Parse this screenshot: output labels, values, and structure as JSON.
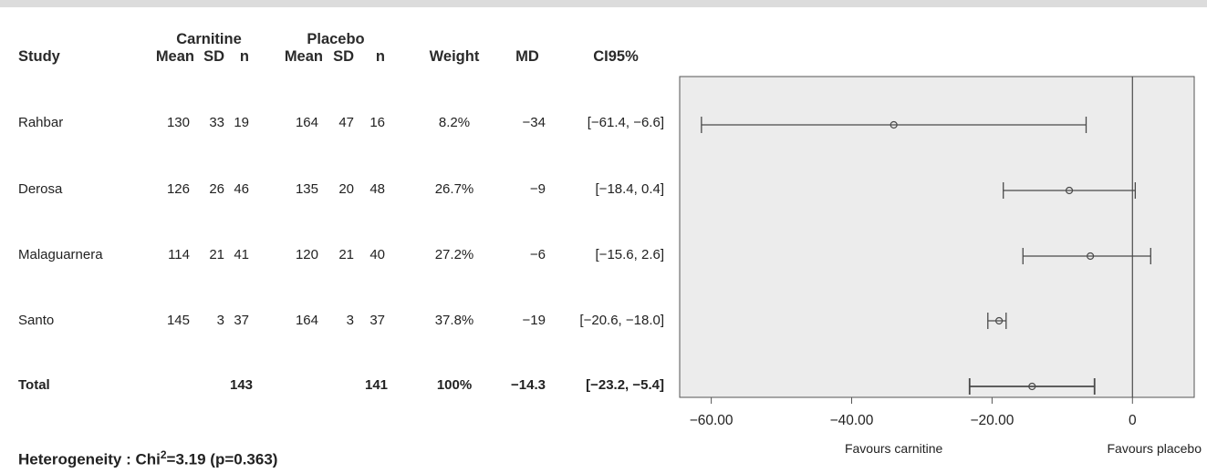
{
  "headers": {
    "group1": "Carnitine",
    "group2": "Placebo",
    "study": "Study",
    "mean": "Mean",
    "sd": "SD",
    "n": "n",
    "weight": "Weight",
    "md": "MD",
    "ci": "CI95%"
  },
  "rows": [
    {
      "study": "Rahbar",
      "c_mean": "130",
      "c_sd": "33",
      "c_n": "19",
      "p_mean": "164",
      "p_sd": "47",
      "p_n": "16",
      "weight": "8.2%",
      "md": "−34",
      "ci": "[−61.4, −6.6]"
    },
    {
      "study": "Derosa",
      "c_mean": "126",
      "c_sd": "26",
      "c_n": "46",
      "p_mean": "135",
      "p_sd": "20",
      "p_n": "48",
      "weight": "26.7%",
      "md": "−9",
      "ci": "[−18.4, 0.4]"
    },
    {
      "study": "Malaguarnera",
      "c_mean": "114",
      "c_sd": "21",
      "c_n": "41",
      "p_mean": "120",
      "p_sd": "21",
      "p_n": "40",
      "weight": "27.2%",
      "md": "−6",
      "ci": "[−15.6, 2.6]"
    },
    {
      "study": "Santo",
      "c_mean": "145",
      "c_sd": "3",
      "c_n": "37",
      "p_mean": "164",
      "p_sd": "3",
      "p_n": "37",
      "weight": "37.8%",
      "md": "−19",
      "ci": "[−20.6, −18.0]"
    }
  ],
  "total": {
    "study": "Total",
    "c_mean": "",
    "c_sd": "",
    "c_n": "143",
    "p_mean": "",
    "p_sd": "",
    "p_n": "141",
    "weight": "100%",
    "md": "−14.3",
    "ci": "[−23.2, −5.4]"
  },
  "heterogeneity": {
    "label": "Heterogeneity : Chi",
    "sup": "2",
    "value": "=3.19 (p=0.363)"
  },
  "chart_data": {
    "type": "forest",
    "studies": [
      "Rahbar",
      "Derosa",
      "Malaguarnera",
      "Santo",
      "Total"
    ],
    "estimates": [
      -34,
      -9,
      -6,
      -19,
      -14.3
    ],
    "ci_lower": [
      -61.4,
      -18.4,
      -15.6,
      -20.6,
      -23.2
    ],
    "ci_upper": [
      -6.6,
      0.4,
      2.6,
      -18.0,
      -5.4
    ],
    "xlim": [
      -64.5,
      8.8
    ],
    "x_ticks": [
      -60,
      -40,
      -20,
      0
    ],
    "x_tick_labels": [
      "−60.00",
      "−40.00",
      "−20.00",
      "0"
    ],
    "reference_line": 0,
    "favours_left": "Favours carnitine",
    "favours_right": "Favours placebo",
    "colors": {
      "panel": "#ececec",
      "line": "#4a4a4a",
      "frame": "#555555"
    }
  }
}
